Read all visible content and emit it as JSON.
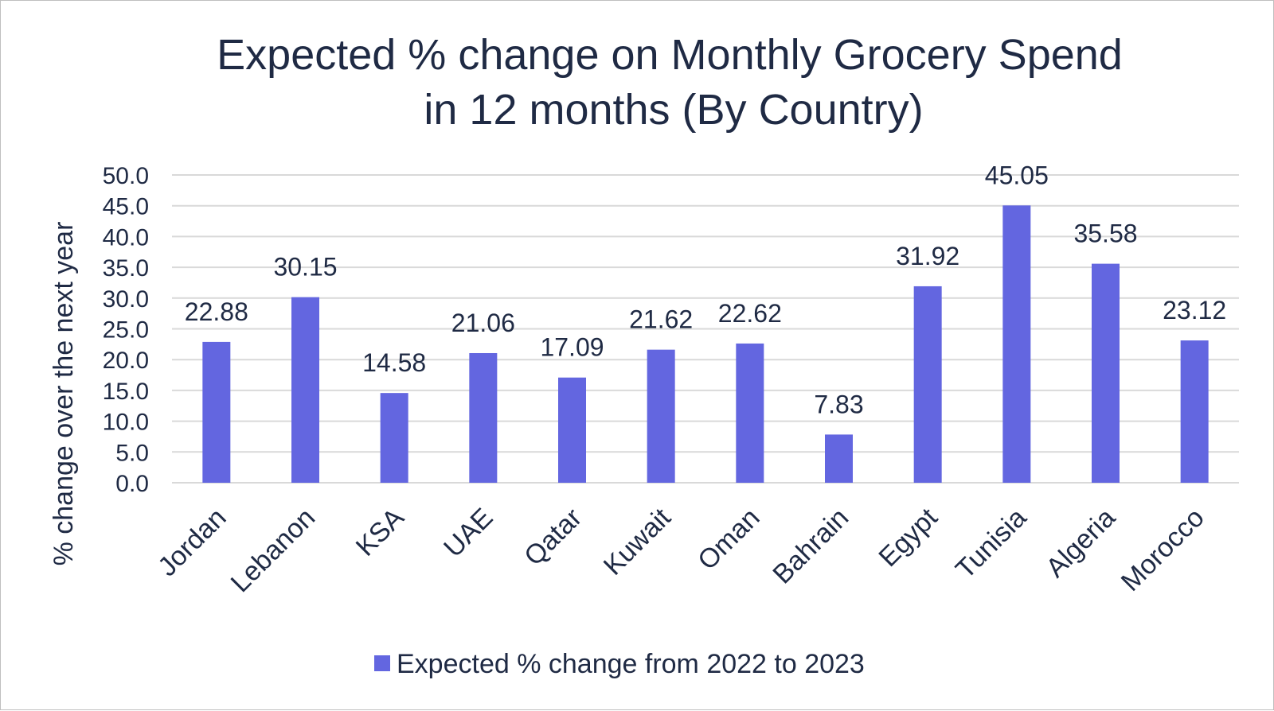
{
  "chart_data": {
    "type": "bar",
    "title": [
      "Expected % change on Monthly Grocery Spend",
      "in 12 months (By Country)"
    ],
    "ylabel": "% change over the next year",
    "xlabel": "",
    "ylim": [
      0,
      50
    ],
    "yticks": [
      "0.0",
      "5.0",
      "10.0",
      "15.0",
      "20.0",
      "25.0",
      "30.0",
      "35.0",
      "40.0",
      "45.0",
      "50.0"
    ],
    "grid": true,
    "legend_position": "bottom",
    "categories": [
      "Jordan",
      "Lebanon",
      "KSA",
      "UAE",
      "Qatar",
      "Kuwait",
      "Oman",
      "Bahrain",
      "Egypt",
      "Tunisia",
      "Algeria",
      "Morocco"
    ],
    "series": [
      {
        "name": "Expected % change from 2022 to 2023",
        "color": "#6366e0",
        "values": [
          22.88,
          30.15,
          14.58,
          21.06,
          17.09,
          21.62,
          22.62,
          7.83,
          31.92,
          45.05,
          35.58,
          23.12
        ],
        "labels": [
          "22.88",
          "30.15",
          "14.58",
          "21.06",
          "17.09",
          "21.62",
          "22.62",
          "7.83",
          "31.92",
          "45.05",
          "35.58",
          "23.12"
        ]
      }
    ]
  }
}
